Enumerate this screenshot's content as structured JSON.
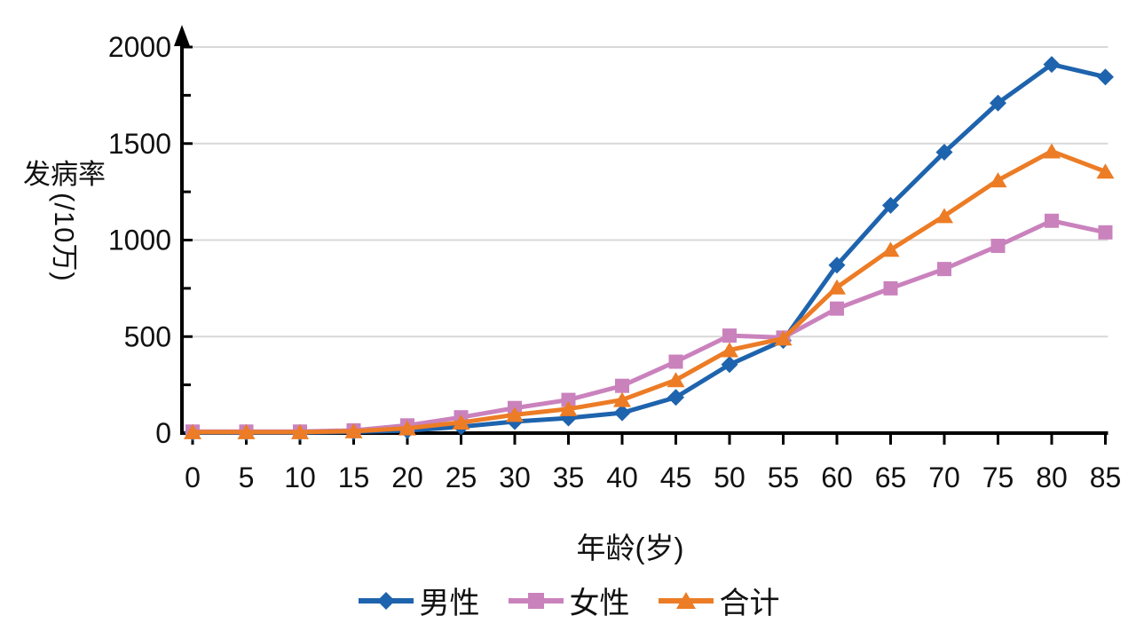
{
  "chart_data": {
    "type": "line",
    "title": "",
    "xlabel": "年龄(岁)",
    "ylabel": "发病率(/10万)",
    "ylabel_main": "发病率",
    "ylabel_unit": "(/10万)",
    "x": [
      0,
      5,
      10,
      15,
      20,
      25,
      30,
      35,
      40,
      45,
      50,
      55,
      60,
      65,
      70,
      75,
      80,
      85
    ],
    "ylim": [
      0,
      2000
    ],
    "yticks_major": [
      0,
      500,
      1000,
      1500,
      2000
    ],
    "yticks_minor": [
      250,
      750,
      1250,
      1750
    ],
    "grid": "horizontal-major",
    "legend_position": "bottom",
    "axis_color": "#000000",
    "grid_color": "#d8d8d8",
    "text_color": "#111111",
    "series": [
      {
        "name": "男性",
        "id": "male",
        "marker": "diamond",
        "color": "#1e63ad",
        "values": [
          3,
          3,
          3,
          7,
          13,
          33,
          60,
          78,
          105,
          185,
          355,
          480,
          870,
          1180,
          1455,
          1710,
          1910,
          1845
        ]
      },
      {
        "name": "女性",
        "id": "female",
        "marker": "square",
        "color": "#ca82bd",
        "values": [
          8,
          8,
          8,
          14,
          40,
          82,
          130,
          172,
          245,
          370,
          505,
          495,
          645,
          750,
          850,
          970,
          1100,
          1040
        ]
      },
      {
        "name": "合计",
        "id": "total",
        "marker": "triangle",
        "color": "#ec7c25",
        "values": [
          5,
          5,
          5,
          10,
          25,
          55,
          95,
          125,
          172,
          275,
          430,
          490,
          755,
          950,
          1125,
          1310,
          1460,
          1355
        ]
      }
    ]
  }
}
